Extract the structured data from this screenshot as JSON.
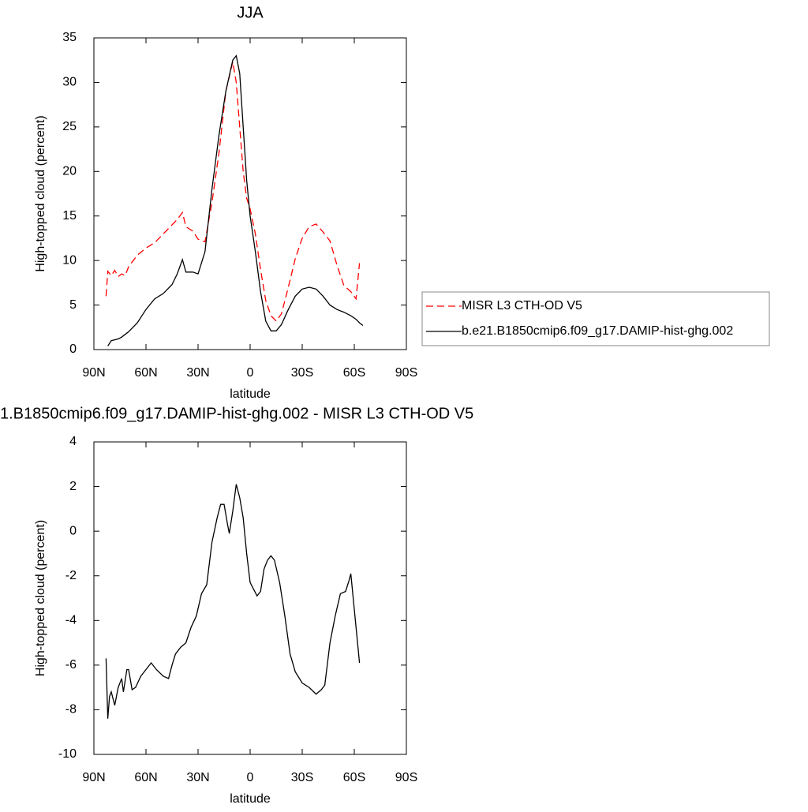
{
  "chart_data": [
    {
      "type": "line",
      "title": "JJA",
      "x_label": "latitude",
      "y_label": "High-topped cloud (percent)",
      "x": [
        83,
        82,
        80,
        78,
        76,
        74,
        72,
        70,
        65,
        60,
        55,
        50,
        45,
        42,
        39,
        37,
        33,
        30,
        26,
        22,
        18,
        14,
        10,
        8,
        6,
        4,
        2,
        0,
        -3,
        -6,
        -9,
        -12,
        -15,
        -18,
        -22,
        -26,
        -30,
        -34,
        -38,
        -42,
        -46,
        -50,
        -54,
        -58,
        -61,
        -63,
        -65
      ],
      "series": [
        {
          "name": "MISR L3 CTH-OD V5",
          "color": "#ff0000",
          "line_style": "dashed",
          "values": [
            6.0,
            8.8,
            8.3,
            8.9,
            8.2,
            8.5,
            8.3,
            9.3,
            10.6,
            11.4,
            12.0,
            13.0,
            14.0,
            14.6,
            15.4,
            13.8,
            13.3,
            12.4,
            12.1,
            16.5,
            22,
            29,
            32.3,
            30,
            25,
            20,
            17,
            15.8,
            13,
            9,
            5.5,
            3.8,
            3.2,
            4.0,
            7.0,
            10.2,
            12.5,
            13.8,
            14.1,
            13.2,
            12.2,
            9.5,
            7.2,
            6.5,
            5.7,
            9.7,
            null
          ]
        },
        {
          "name": "b.e21.B1850cmip6.f09_g17.DAMIP-hist-ghg.002",
          "color": "#000000",
          "line_style": "solid",
          "values": [
            null,
            0.4,
            1.0,
            1.1,
            1.2,
            1.4,
            1.7,
            2.0,
            3.0,
            4.5,
            5.7,
            6.3,
            7.3,
            8.5,
            10.1,
            8.7,
            8.7,
            8.5,
            11,
            18,
            24,
            29,
            32.5,
            33,
            31,
            25,
            19,
            15,
            11,
            6.5,
            3.2,
            2.1,
            2.1,
            2.8,
            4.5,
            6.0,
            6.8,
            7.0,
            6.8,
            6.0,
            5.0,
            4.5,
            4.2,
            3.8,
            3.4,
            3.0,
            2.7
          ]
        }
      ],
      "xlim": [
        90,
        -90
      ],
      "xticks": [
        {
          "value": 90,
          "label": "90N"
        },
        {
          "value": 60,
          "label": "60N"
        },
        {
          "value": 30,
          "label": "30N"
        },
        0,
        {
          "value": -30,
          "label": "30S"
        },
        {
          "value": -60,
          "label": "60S"
        },
        {
          "value": -90,
          "label": "90S"
        }
      ],
      "ylim": [
        0,
        35
      ],
      "yticks": [
        0,
        5,
        10,
        15,
        20,
        25,
        30,
        35
      ],
      "legend": "right"
    },
    {
      "type": "line",
      "title": "1.B1850cmip6.f09_g17.DAMIP-hist-ghg.002 - MISR L3 CTH-OD V5",
      "x_label": "latitude",
      "y_label": "High-topped cloud (percent)",
      "x": [
        83,
        82,
        81,
        80,
        78,
        76,
        74,
        73,
        71,
        70,
        68,
        66,
        63,
        60,
        57,
        54,
        50,
        47,
        45,
        43,
        40,
        37,
        34,
        31,
        28,
        25,
        22,
        19,
        17,
        15,
        13,
        12,
        10,
        8,
        6,
        4,
        2,
        0,
        -2,
        -4,
        -6,
        -8,
        -10,
        -12,
        -14,
        -17,
        -20,
        -23,
        -26,
        -30,
        -34,
        -38,
        -41,
        -43,
        -46,
        -49,
        -52,
        -55,
        -57,
        -58,
        -63
      ],
      "series": [
        {
          "name": null,
          "color": "#000000",
          "line_style": "solid",
          "values": [
            -5.7,
            -8.4,
            -7.4,
            -7.2,
            -7.8,
            -7.0,
            -6.6,
            -7.2,
            -6.2,
            -6.2,
            -7.1,
            -7.0,
            -6.5,
            -6.2,
            -5.9,
            -6.2,
            -6.5,
            -6.6,
            -6.0,
            -5.5,
            -5.2,
            -5.0,
            -4.3,
            -3.8,
            -2.8,
            -2.4,
            -0.5,
            0.6,
            1.2,
            1.2,
            0.3,
            -0.1,
            0.9,
            2.1,
            1.5,
            0.6,
            -1.0,
            -2.3,
            -2.6,
            -2.9,
            -2.7,
            -1.7,
            -1.3,
            -1.1,
            -1.3,
            -2.3,
            -3.8,
            -5.5,
            -6.3,
            -6.8,
            -7.0,
            -7.3,
            -7.1,
            -6.9,
            -5.0,
            -3.8,
            -2.8,
            -2.7,
            -2.2,
            -1.9,
            -5.9
          ]
        }
      ],
      "xlim": [
        90,
        -90
      ],
      "xticks": [
        {
          "value": 90,
          "label": "90N"
        },
        {
          "value": 60,
          "label": "60N"
        },
        {
          "value": 30,
          "label": "30N"
        },
        0,
        {
          "value": -30,
          "label": "30S"
        },
        {
          "value": -60,
          "label": "60S"
        },
        {
          "value": -90,
          "label": "90S"
        }
      ],
      "ylim": [
        -10,
        4
      ],
      "yticks": [
        -10,
        -8,
        -6,
        -4,
        -2,
        0,
        2,
        4
      ]
    }
  ]
}
